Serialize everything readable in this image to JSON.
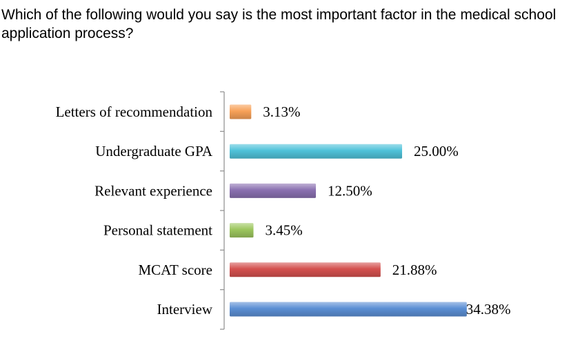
{
  "question": "Which of the following would you say is the most important factor in the medical school application process?",
  "chart_data": {
    "type": "bar",
    "orientation": "horizontal",
    "title": "",
    "xlabel": "",
    "ylabel": "",
    "xlim": [
      0,
      40
    ],
    "grid": false,
    "legend": "none",
    "categories": [
      "Letters of recommendation",
      "Undergraduate GPA",
      "Relevant experience",
      "Personal statement",
      "MCAT score",
      "Interview"
    ],
    "values": [
      3.13,
      25.0,
      12.5,
      3.45,
      21.88,
      34.38
    ],
    "value_labels": [
      "3.13%",
      "25.00%",
      "12.50%",
      "3.45%",
      "21.88%",
      "34.38%"
    ],
    "colors": [
      "#f7a158",
      "#4fc2d9",
      "#8a70b0",
      "#9cc65e",
      "#d4504e",
      "#5b8fd4"
    ]
  }
}
